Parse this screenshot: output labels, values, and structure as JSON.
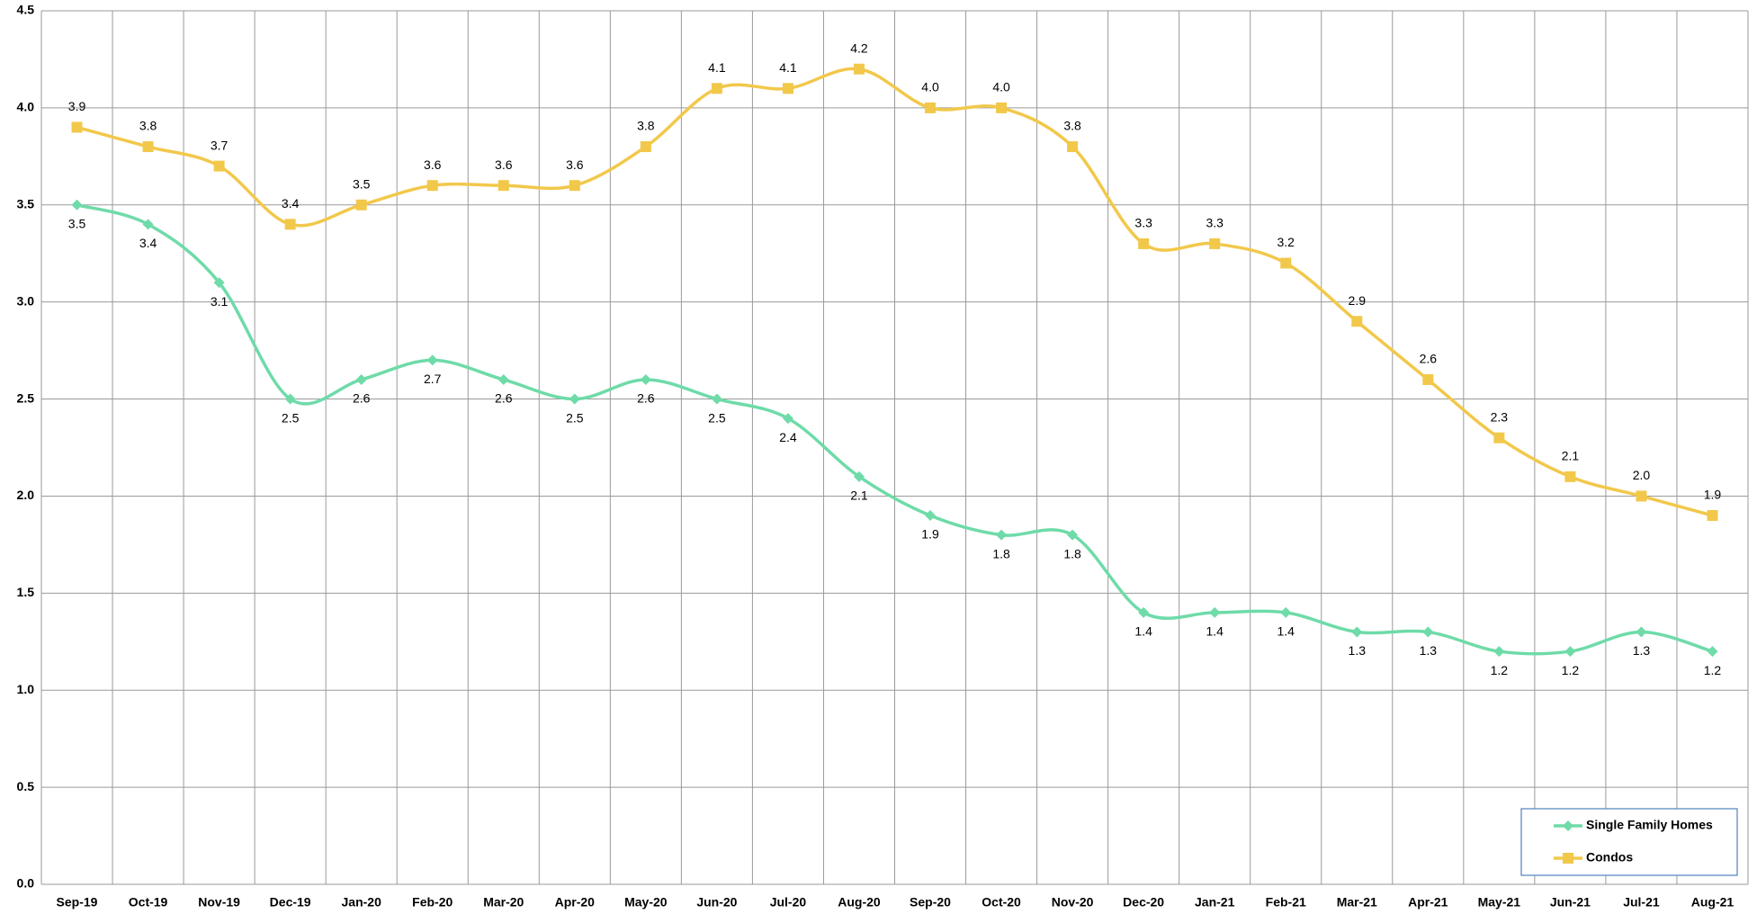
{
  "chart_data": {
    "type": "line",
    "categories": [
      "Sep-19",
      "Oct-19",
      "Nov-19",
      "Dec-19",
      "Jan-20",
      "Feb-20",
      "Mar-20",
      "Apr-20",
      "May-20",
      "Jun-20",
      "Jul-20",
      "Aug-20",
      "Sep-20",
      "Oct-20",
      "Nov-20",
      "Dec-20",
      "Jan-21",
      "Feb-21",
      "Mar-21",
      "Apr-21",
      "May-21",
      "Jun-21",
      "Jul-21",
      "Aug-21"
    ],
    "series": [
      {
        "name": "Single Family Homes",
        "color": "#6edba8",
        "marker": "diamond",
        "label_position": "below",
        "values": [
          3.5,
          3.4,
          3.1,
          2.5,
          2.6,
          2.7,
          2.6,
          2.5,
          2.6,
          2.5,
          2.4,
          2.1,
          1.9,
          1.8,
          1.8,
          1.4,
          1.4,
          1.4,
          1.3,
          1.3,
          1.2,
          1.2,
          1.3,
          1.2
        ],
        "value_labels": [
          "3.5",
          "3.4",
          "3.1",
          "2.5",
          "2.6",
          "2.7",
          "2.6",
          "2.5",
          "2.6",
          "2.5",
          "2.4",
          "2.1",
          "1.9",
          "1.8",
          "1.8",
          "1.4",
          "1.4",
          "1.4",
          "1.3",
          "1.3",
          "1.2",
          "1.2",
          "1.3",
          "1.2"
        ]
      },
      {
        "name": "Condos",
        "color": "#f2c84b",
        "marker": "square",
        "label_position": "above",
        "values": [
          3.9,
          3.8,
          3.7,
          3.4,
          3.5,
          3.6,
          3.6,
          3.6,
          3.8,
          4.1,
          4.1,
          4.2,
          4.0,
          4.0,
          3.8,
          3.3,
          3.3,
          3.2,
          2.9,
          2.6,
          2.3,
          2.1,
          2.0,
          1.9
        ],
        "value_labels": [
          "3.9",
          "3.8",
          "3.7",
          "3.4",
          "3.5",
          "3.6",
          "3.6",
          "3.6",
          "3.8",
          "4.1",
          "4.1",
          "4.2",
          "4.0",
          "4.0",
          "3.8",
          "3.3",
          "3.3",
          "3.2",
          "2.9",
          "2.6",
          "2.3",
          "2.1",
          "2.0",
          "1.9"
        ]
      }
    ],
    "ylim": [
      0,
      4.5
    ],
    "yticks": [
      {
        "value": 0,
        "label": "0.0"
      },
      0.5,
      {
        "value": 1,
        "label": "1.0"
      },
      1.5,
      {
        "value": 2,
        "label": "2.0"
      },
      2.5,
      {
        "value": 3,
        "label": "3.0"
      },
      3.5,
      {
        "value": 4,
        "label": "4.0"
      },
      4.5
    ],
    "grid": true,
    "smooth": true,
    "legend": "lower right"
  }
}
